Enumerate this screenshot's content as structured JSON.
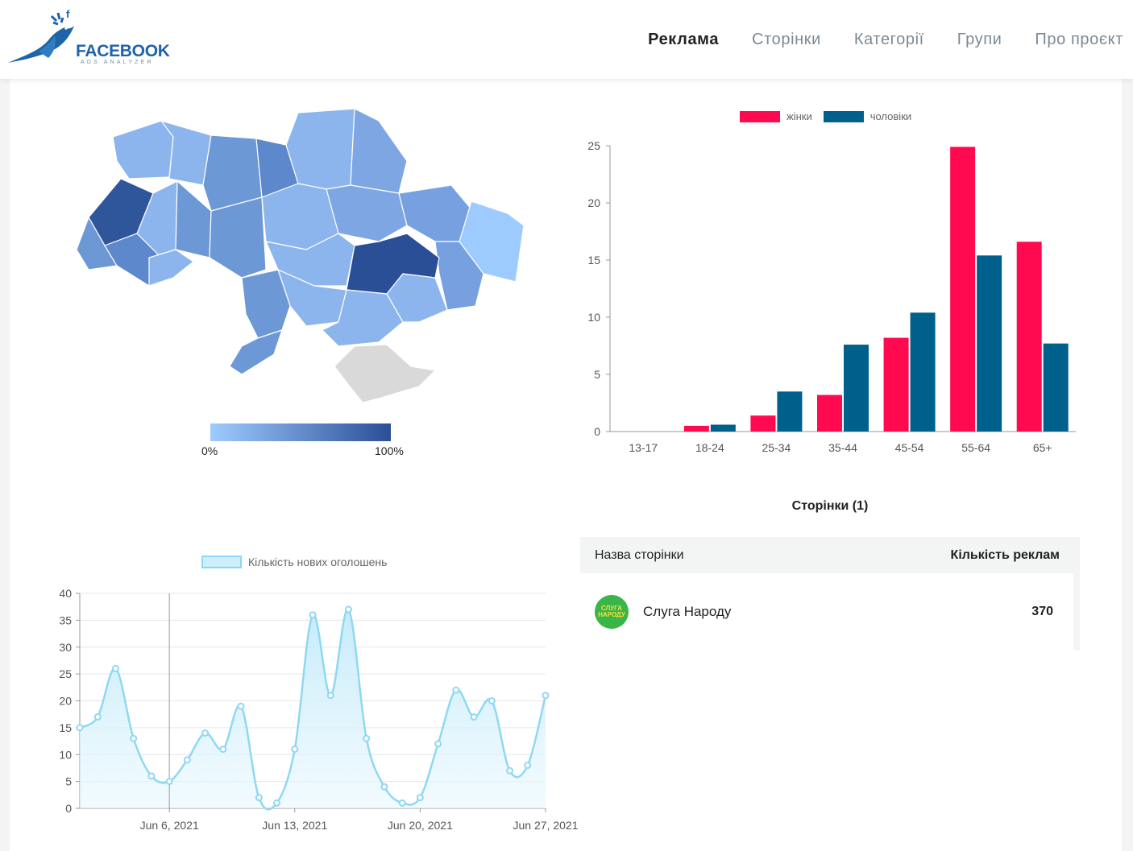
{
  "header": {
    "logo_text": "FACEBOOK",
    "logo_sub": "ADS ANALYZER",
    "nav": [
      {
        "label": "Реклама",
        "active": true
      },
      {
        "label": "Сторінки"
      },
      {
        "label": "Категорії"
      },
      {
        "label": "Групи"
      },
      {
        "label": "Про проєкт"
      }
    ]
  },
  "map": {
    "scale_min": "0%",
    "scale_max": "100%",
    "color_low": "#9ecbff",
    "color_high": "#2b4f97"
  },
  "chart_data": [
    {
      "type": "bar",
      "categories": [
        "13-17",
        "18-24",
        "25-34",
        "35-44",
        "45-54",
        "55-64",
        "65+"
      ],
      "series": [
        {
          "name": "жінки",
          "color": "#ff0a50",
          "values": [
            0,
            0.5,
            1.4,
            3.2,
            8.2,
            24.9,
            16.6
          ]
        },
        {
          "name": "чоловіки",
          "color": "#00608c",
          "values": [
            0,
            0.6,
            3.5,
            7.6,
            10.4,
            15.4,
            7.7
          ]
        }
      ],
      "ylim": [
        0,
        25
      ],
      "yticks": [
        0,
        5,
        10,
        15,
        20,
        25
      ],
      "legend": "top"
    },
    {
      "type": "area",
      "series": [
        {
          "name": "Кількість нових оголошень",
          "color": "#8fd8f3",
          "values": [
            15,
            17,
            26,
            13,
            6,
            5,
            9,
            14,
            11,
            19,
            2,
            1,
            11,
            36,
            21,
            37,
            13,
            4,
            1,
            2,
            12,
            22,
            17,
            20,
            7,
            8,
            21
          ]
        }
      ],
      "x_tick_labels": [
        "Jun 6, 2021",
        "Jun 13, 2021",
        "Jun 20, 2021",
        "Jun 27, 2021"
      ],
      "ylim": [
        0,
        40
      ],
      "yticks": [
        0,
        5,
        10,
        15,
        20,
        25,
        30,
        35,
        40
      ],
      "legend": "top"
    }
  ],
  "pages_section": {
    "title": "Сторінки (1)",
    "col_name": "Назва сторінки",
    "col_count": "Кількість реклам",
    "rows": [
      {
        "name": "Слуга Народу",
        "count": "370",
        "avatar_text": "СЛУГА НАРОДУ"
      }
    ]
  }
}
